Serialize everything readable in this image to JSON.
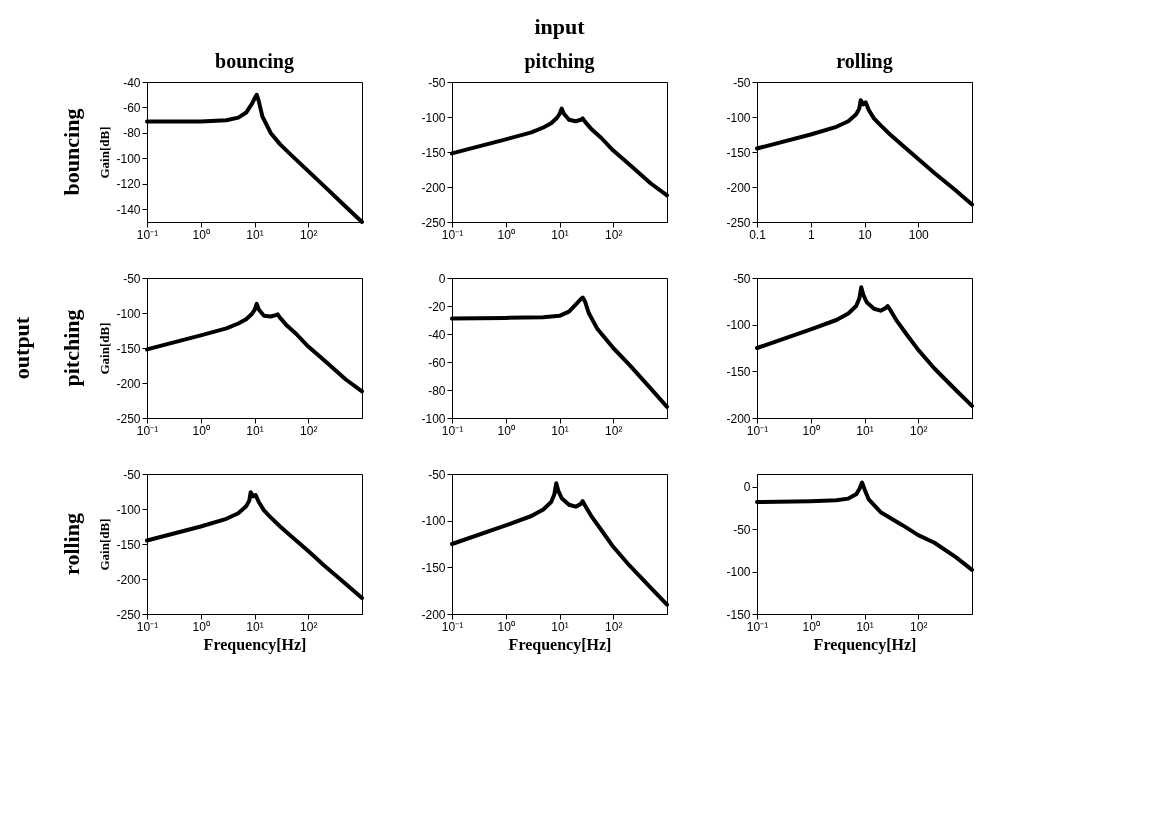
{
  "chart_data": [
    {
      "type": "line",
      "title": "bouncing",
      "ylabel": "Gain[dB]",
      "annotations": [
        "bouncing"
      ],
      "log": "x",
      "grid": false,
      "line_style": "solid",
      "xlim": [
        0.1,
        1000
      ],
      "xticks": [
        {
          "value": 0.1,
          "label": "10⁻¹"
        },
        {
          "value": 1,
          "label": "10⁰"
        },
        {
          "value": 10,
          "label": "10¹"
        },
        {
          "value": 100,
          "label": "10²"
        }
      ],
      "ylim": [
        -150,
        -40
      ],
      "yticks": [
        -140,
        -120,
        -100,
        -80,
        -60,
        -40
      ],
      "series": [
        {
          "color": "#000000",
          "x": [
            0.1,
            1,
            3,
            5,
            7,
            9,
            10,
            11,
            12,
            14,
            20,
            30,
            50,
            100,
            200,
            500,
            1000
          ],
          "values": [
            -71,
            -71,
            -70,
            -68,
            -64,
            -57,
            -53,
            -50,
            -55,
            -67,
            -80,
            -89,
            -98,
            -110,
            -122,
            -138,
            -150
          ]
        }
      ]
    },
    {
      "type": "line",
      "title": "pitching",
      "annotations": [
        "input"
      ],
      "log": "x",
      "grid": false,
      "line_style": "solid",
      "xlim": [
        0.1,
        1000
      ],
      "xticks": [
        {
          "value": 0.1,
          "label": "10⁻¹"
        },
        {
          "value": 1,
          "label": "10⁰"
        },
        {
          "value": 10,
          "label": "10¹"
        },
        {
          "value": 100,
          "label": "10²"
        }
      ],
      "ylim": [
        -250,
        -50
      ],
      "yticks": [
        -250,
        -200,
        -150,
        -100,
        -50
      ],
      "series": [
        {
          "color": "#000000",
          "x": [
            0.1,
            1,
            3,
            5,
            7,
            9,
            10,
            11,
            12,
            15,
            20,
            25,
            27,
            30,
            40,
            60,
            100,
            200,
            500,
            1000
          ],
          "values": [
            -152,
            -132,
            -122,
            -115,
            -109,
            -101,
            -96,
            -88,
            -95,
            -104,
            -106,
            -104,
            -102,
            -107,
            -118,
            -130,
            -148,
            -168,
            -195,
            -212
          ]
        }
      ]
    },
    {
      "type": "line",
      "title": "rolling",
      "log": "x",
      "grid": false,
      "line_style": "solid",
      "xlim": [
        0.1,
        1000
      ],
      "xticks": [
        0.1,
        1,
        10,
        100
      ],
      "ylim": [
        -250,
        -50
      ],
      "yticks": [
        -250,
        -200,
        -150,
        -100,
        -50
      ],
      "series": [
        {
          "color": "#000000",
          "x": [
            0.1,
            1,
            3,
            5,
            7,
            8,
            8.5,
            9.5,
            10.5,
            12,
            15,
            20,
            30,
            50,
            100,
            200,
            500,
            1000
          ],
          "values": [
            -145,
            -125,
            -114,
            -106,
            -96,
            -88,
            -76,
            -82,
            -79,
            -90,
            -102,
            -112,
            -125,
            -140,
            -160,
            -180,
            -205,
            -225
          ]
        }
      ]
    },
    {
      "type": "line",
      "ylabel": "Gain[dB]",
      "annotations": [
        "pitching",
        "output"
      ],
      "log": "x",
      "grid": false,
      "line_style": "solid",
      "xlim": [
        0.1,
        1000
      ],
      "xticks": [
        {
          "value": 0.1,
          "label": "10⁻¹"
        },
        {
          "value": 1,
          "label": "10⁰"
        },
        {
          "value": 10,
          "label": "10¹"
        },
        {
          "value": 100,
          "label": "10²"
        }
      ],
      "ylim": [
        -250,
        -50
      ],
      "yticks": [
        -250,
        -200,
        -150,
        -100,
        -50
      ],
      "series": [
        {
          "color": "#000000",
          "x": [
            0.1,
            1,
            3,
            5,
            7,
            9,
            10,
            11,
            12,
            15,
            20,
            25,
            27,
            30,
            40,
            60,
            100,
            200,
            500,
            1000
          ],
          "values": [
            -152,
            -132,
            -122,
            -115,
            -109,
            -101,
            -96,
            -87,
            -95,
            -104,
            -105,
            -103,
            -102,
            -107,
            -118,
            -130,
            -148,
            -168,
            -195,
            -212
          ]
        }
      ]
    },
    {
      "type": "line",
      "log": "x",
      "grid": false,
      "line_style": "solid",
      "xlim": [
        0.1,
        1000
      ],
      "xticks": [
        {
          "value": 0.1,
          "label": "10⁻¹"
        },
        {
          "value": 1,
          "label": "10⁰"
        },
        {
          "value": 10,
          "label": "10¹"
        },
        {
          "value": 100,
          "label": "10²"
        }
      ],
      "ylim": [
        -100,
        0
      ],
      "yticks": [
        -100,
        -80,
        -60,
        -40,
        -20,
        0
      ],
      "series": [
        {
          "color": "#000000",
          "x": [
            0.1,
            1,
            5,
            10,
            15,
            20,
            25,
            27,
            30,
            35,
            50,
            100,
            200,
            500,
            1000
          ],
          "values": [
            -29,
            -28.5,
            -28,
            -27,
            -24,
            -19,
            -15,
            -14,
            -17,
            -25,
            -36,
            -50,
            -62,
            -79,
            -92
          ]
        }
      ]
    },
    {
      "type": "line",
      "log": "x",
      "grid": false,
      "line_style": "solid",
      "xlim": [
        0.1,
        1000
      ],
      "xticks": [
        {
          "value": 0.1,
          "label": "10⁻¹"
        },
        {
          "value": 1,
          "label": "10⁰"
        },
        {
          "value": 10,
          "label": "10¹"
        },
        {
          "value": 100,
          "label": "10²"
        }
      ],
      "ylim": [
        -200,
        -50
      ],
      "yticks": [
        -200,
        -150,
        -100,
        -50
      ],
      "series": [
        {
          "color": "#000000",
          "x": [
            0.1,
            1,
            3,
            5,
            7,
            8,
            8.7,
            9.5,
            11,
            15,
            20,
            25,
            27,
            30,
            40,
            60,
            100,
            200,
            500,
            1000
          ],
          "values": [
            -125,
            -105,
            -95,
            -88,
            -80,
            -72,
            -60,
            -68,
            -76,
            -83,
            -85,
            -82,
            -80,
            -84,
            -96,
            -110,
            -127,
            -147,
            -170,
            -187
          ]
        }
      ]
    },
    {
      "type": "line",
      "xlabel": "Frequency[Hz]",
      "ylabel": "Gain[dB]",
      "annotations": [
        "rolling"
      ],
      "log": "x",
      "grid": false,
      "line_style": "solid",
      "xlim": [
        0.1,
        1000
      ],
      "xticks": [
        {
          "value": 0.1,
          "label": "10⁻¹"
        },
        {
          "value": 1,
          "label": "10⁰"
        },
        {
          "value": 10,
          "label": "10¹"
        },
        {
          "value": 100,
          "label": "10²"
        }
      ],
      "ylim": [
        -250,
        -50
      ],
      "yticks": [
        -250,
        -200,
        -150,
        -100,
        -50
      ],
      "series": [
        {
          "color": "#000000",
          "x": [
            0.1,
            1,
            3,
            5,
            7,
            8,
            8.5,
            9.5,
            10.5,
            12,
            15,
            20,
            30,
            50,
            100,
            200,
            500,
            1000
          ],
          "values": [
            -145,
            -125,
            -114,
            -106,
            -96,
            -88,
            -76,
            -82,
            -80,
            -90,
            -102,
            -112,
            -125,
            -140,
            -160,
            -181,
            -207,
            -227
          ]
        }
      ]
    },
    {
      "type": "line",
      "xlabel": "Frequency[Hz]",
      "log": "x",
      "grid": false,
      "line_style": "solid",
      "xlim": [
        0.1,
        1000
      ],
      "xticks": [
        {
          "value": 0.1,
          "label": "10⁻¹"
        },
        {
          "value": 1,
          "label": "10⁰"
        },
        {
          "value": 10,
          "label": "10¹"
        },
        {
          "value": 100,
          "label": "10²"
        }
      ],
      "ylim": [
        -200,
        -50
      ],
      "yticks": [
        -200,
        -150,
        -100,
        -50
      ],
      "series": [
        {
          "color": "#000000",
          "x": [
            0.1,
            1,
            3,
            5,
            7,
            8,
            8.7,
            9.5,
            11,
            15,
            20,
            25,
            27,
            30,
            40,
            60,
            100,
            200,
            500,
            1000
          ],
          "values": [
            -125,
            -105,
            -95,
            -88,
            -80,
            -72,
            -60,
            -68,
            -76,
            -83,
            -85,
            -82,
            -79,
            -84,
            -96,
            -110,
            -128,
            -148,
            -172,
            -190
          ]
        }
      ]
    },
    {
      "type": "line",
      "xlabel": "Frequency[Hz]",
      "log": "x",
      "grid": false,
      "line_style": "solid",
      "xlim": [
        0.1,
        1000
      ],
      "xticks": [
        {
          "value": 0.1,
          "label": "10⁻¹"
        },
        {
          "value": 1,
          "label": "10⁰"
        },
        {
          "value": 10,
          "label": "10¹"
        },
        {
          "value": 100,
          "label": "10²"
        }
      ],
      "ylim": [
        -150,
        15
      ],
      "yticks": [
        -150,
        -100,
        -50,
        0
      ],
      "series": [
        {
          "color": "#000000",
          "x": [
            0.1,
            1,
            3,
            5,
            7,
            8,
            9,
            10,
            12,
            20,
            50,
            100,
            200,
            500,
            1000
          ],
          "values": [
            -18,
            -17,
            -16,
            -14,
            -9,
            -3,
            5,
            -3,
            -15,
            -30,
            -45,
            -57,
            -66,
            -83,
            -98
          ]
        }
      ]
    }
  ]
}
